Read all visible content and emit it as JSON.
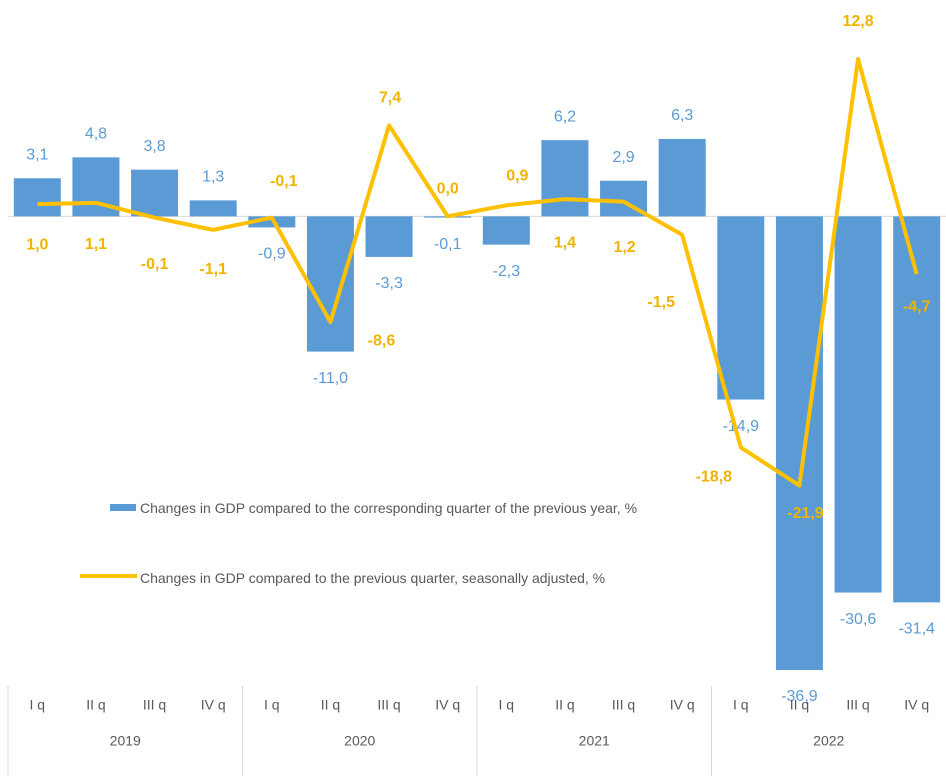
{
  "chart_data": {
    "type": "bar_line",
    "categories": [
      "I q",
      "II q",
      "III q",
      "IV q",
      "I q",
      "II q",
      "III q",
      "IV q",
      "I q",
      "II q",
      "III q",
      "IV q",
      "I q",
      "II q",
      "III q",
      "IV q"
    ],
    "years": [
      "2019",
      "2020",
      "2021",
      "2022"
    ],
    "series": [
      {
        "name": "Changes in GDP compared to the corresponding quarter of the previous year, %",
        "type": "bar",
        "color": "#5b9bd5",
        "values": [
          3.1,
          4.8,
          3.8,
          1.3,
          -0.9,
          -11.0,
          -3.3,
          -0.1,
          -2.3,
          6.2,
          2.9,
          6.3,
          -14.9,
          -36.9,
          -30.6,
          -31.4
        ],
        "value_labels": [
          "3,1",
          "4,8",
          "3,8",
          "1,3",
          "-0,9",
          "-11,0",
          "-3,3",
          "-0,1",
          "-2,3",
          "6,2",
          "2,9",
          "6,3",
          "-14,9",
          "-36,9",
          "-30,6",
          "-31,4"
        ]
      },
      {
        "name": "Changes in GDP compared to the previous quarter, seasonally adjusted, %",
        "type": "line",
        "color": "#ffc000",
        "values": [
          1.0,
          1.1,
          -0.1,
          -1.1,
          -0.1,
          -8.6,
          7.4,
          0.0,
          0.9,
          1.4,
          1.2,
          -1.5,
          -18.8,
          -21.9,
          12.8,
          -4.7
        ],
        "value_labels": [
          "1,0",
          "1,1",
          "-0,1",
          "-1,1",
          "-0,1",
          "-8,6",
          "7,4",
          "0,0",
          "0,9",
          "1,4",
          "1,2",
          "-1,5",
          "-18,8",
          "-21,9",
          "12,8",
          "-4,7"
        ]
      }
    ]
  }
}
